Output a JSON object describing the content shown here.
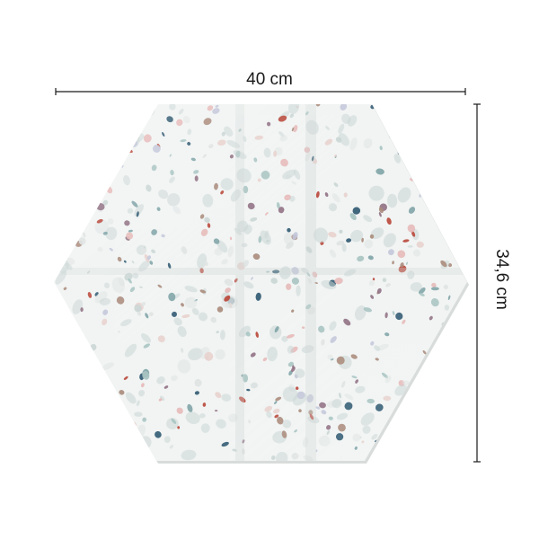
{
  "product": {
    "shape": "hexagon",
    "pattern": "terrazzo",
    "base_color": "#f1f4f3",
    "chip_colors": [
      "#c9d6d4",
      "#dfe3e2",
      "#e6b9b8",
      "#a7c4c2",
      "#b84436",
      "#2e5870",
      "#a9897a",
      "#8f6f82",
      "#c3c6d9",
      "#e8d2cd",
      "#7ea3a6"
    ]
  },
  "dimensions": {
    "width_label": "40 cm",
    "height_label": "34,6 cm",
    "line_color": "#1a1a1a"
  }
}
